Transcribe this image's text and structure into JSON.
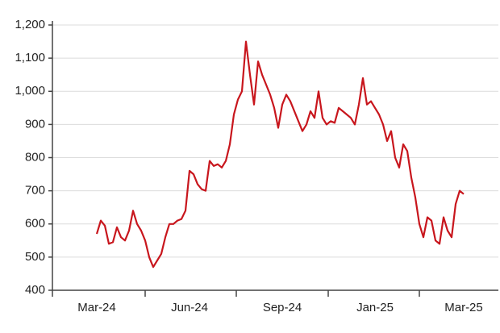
{
  "chart_data": {
    "type": "line",
    "color": "#c8161d",
    "grid": true,
    "categories": [
      "Mar-24",
      null,
      null,
      null,
      null,
      null,
      null,
      null,
      null,
      null,
      null,
      null,
      null,
      null,
      null,
      null,
      null,
      null,
      null,
      null,
      null,
      null,
      null,
      "Jun-24",
      null,
      null,
      null,
      null,
      null,
      null,
      null,
      null,
      null,
      null,
      null,
      null,
      null,
      null,
      null,
      null,
      null,
      null,
      null,
      null,
      null,
      null,
      "Sep-24",
      null,
      null,
      null,
      null,
      null,
      null,
      null,
      null,
      null,
      null,
      null,
      null,
      null,
      null,
      null,
      null,
      null,
      null,
      null,
      null,
      null,
      null,
      "Jan-25",
      null,
      null,
      null,
      null,
      null,
      null,
      null,
      null,
      null,
      null,
      null,
      null,
      null,
      null,
      null,
      null,
      null,
      null,
      null,
      null,
      null,
      "Mar-25"
    ],
    "values": [
      570,
      610,
      595,
      540,
      545,
      590,
      560,
      550,
      580,
      640,
      600,
      580,
      550,
      500,
      470,
      490,
      510,
      560,
      600,
      600,
      610,
      615,
      640,
      760,
      750,
      720,
      705,
      700,
      790,
      775,
      780,
      770,
      790,
      840,
      930,
      975,
      1000,
      1150,
      1050,
      960,
      1090,
      1050,
      1020,
      990,
      950,
      890,
      960,
      990,
      970,
      940,
      910,
      880,
      900,
      940,
      920,
      1000,
      920,
      900,
      910,
      905,
      950,
      940,
      930,
      920,
      900,
      960,
      1040,
      960,
      970,
      950,
      930,
      900,
      850,
      880,
      800,
      770,
      840,
      820,
      740,
      680,
      600,
      560,
      620,
      610,
      550,
      540,
      620,
      580,
      560,
      660,
      700,
      690
    ],
    "ylim": [
      400,
      1200
    ],
    "yticks": [
      400,
      500,
      600,
      700,
      800,
      900,
      {
        "value": 1000,
        "label": "1,000"
      },
      {
        "value": 1100,
        "label": "1,100"
      },
      {
        "value": 1200,
        "label": "1,200"
      }
    ]
  }
}
